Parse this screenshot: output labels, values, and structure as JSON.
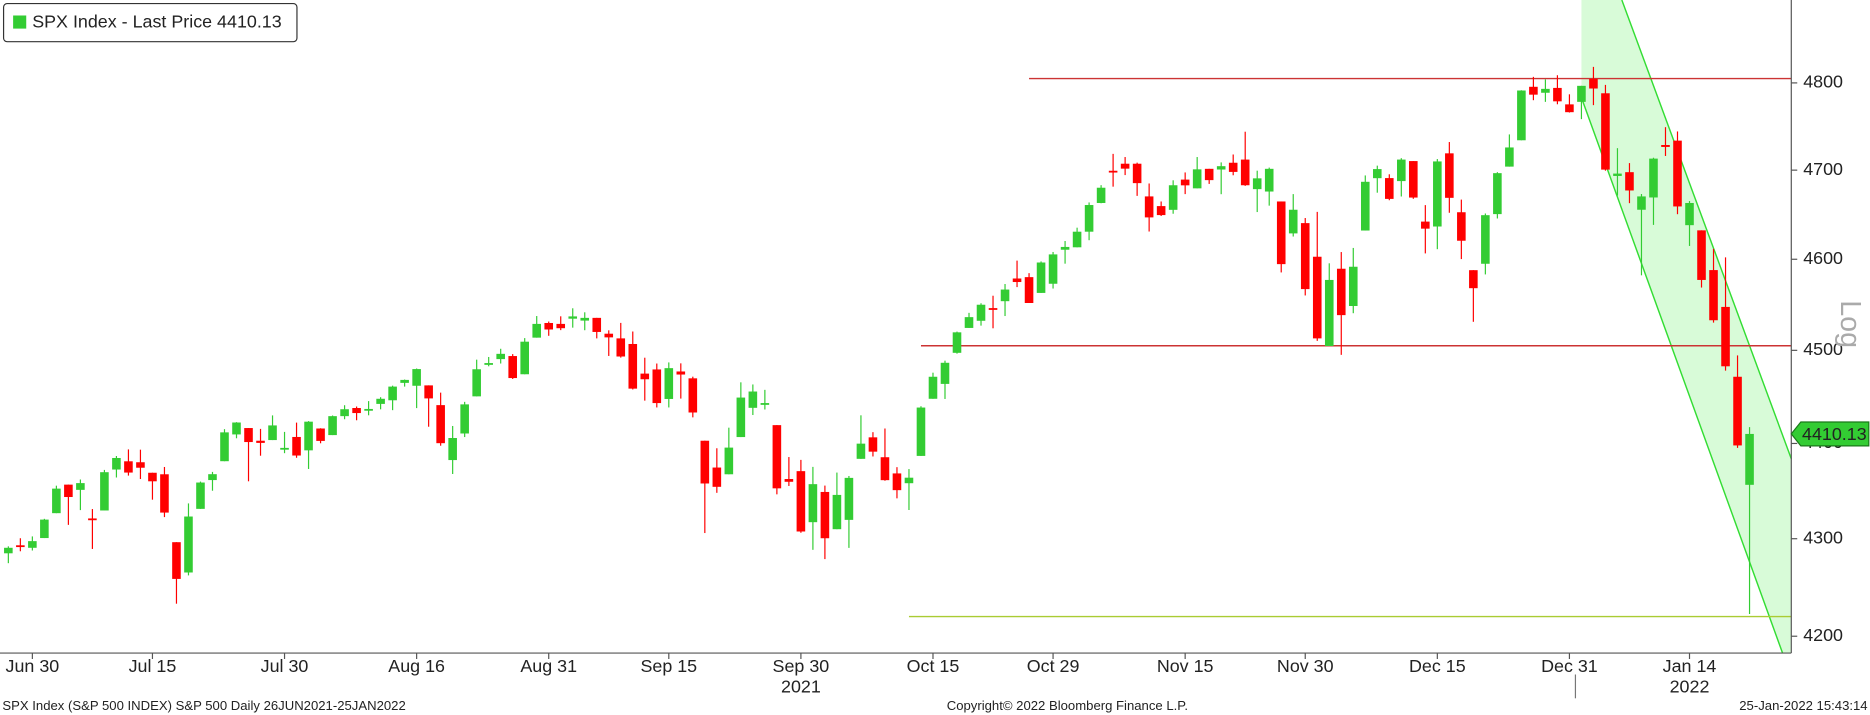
{
  "chart_data": {
    "type": "candlestick",
    "legend": "SPX Index - Last Price 4410.13",
    "last_price": 4410.13,
    "scale_label": "Log",
    "log_scale": true,
    "up_color": "#33cc33",
    "down_color": "#ff0000",
    "footer_left": "SPX Index (S&P 500 INDEX) S&P 500  Daily 26JUN2021-25JAN2022",
    "footer_center": "Copyright© 2022 Bloomberg Finance L.P.",
    "footer_right": "25-Jan-2022 15:43:14",
    "categories": [
      "2021-06-28",
      "2021-06-29",
      "2021-06-30",
      "2021-07-01",
      "2021-07-02",
      "2021-07-06",
      "2021-07-07",
      "2021-07-08",
      "2021-07-09",
      "2021-07-12",
      "2021-07-13",
      "2021-07-14",
      "2021-07-15",
      "2021-07-16",
      "2021-07-19",
      "2021-07-20",
      "2021-07-21",
      "2021-07-22",
      "2021-07-23",
      "2021-07-26",
      "2021-07-27",
      "2021-07-28",
      "2021-07-29",
      "2021-07-30",
      "2021-08-02",
      "2021-08-03",
      "2021-08-04",
      "2021-08-05",
      "2021-08-06",
      "2021-08-09",
      "2021-08-10",
      "2021-08-11",
      "2021-08-12",
      "2021-08-13",
      "2021-08-16",
      "2021-08-17",
      "2021-08-18",
      "2021-08-19",
      "2021-08-20",
      "2021-08-23",
      "2021-08-24",
      "2021-08-25",
      "2021-08-26",
      "2021-08-27",
      "2021-08-30",
      "2021-08-31",
      "2021-09-01",
      "2021-09-02",
      "2021-09-03",
      "2021-09-07",
      "2021-09-08",
      "2021-09-09",
      "2021-09-10",
      "2021-09-13",
      "2021-09-14",
      "2021-09-15",
      "2021-09-16",
      "2021-09-17",
      "2021-09-20",
      "2021-09-21",
      "2021-09-22",
      "2021-09-23",
      "2021-09-24",
      "2021-09-27",
      "2021-09-28",
      "2021-09-29",
      "2021-09-30",
      "2021-10-01",
      "2021-10-04",
      "2021-10-05",
      "2021-10-06",
      "2021-10-07",
      "2021-10-08",
      "2021-10-11",
      "2021-10-12",
      "2021-10-13",
      "2021-10-14",
      "2021-10-15",
      "2021-10-18",
      "2021-10-19",
      "2021-10-20",
      "2021-10-21",
      "2021-10-22",
      "2021-10-25",
      "2021-10-26",
      "2021-10-27",
      "2021-10-28",
      "2021-10-29",
      "2021-11-01",
      "2021-11-02",
      "2021-11-03",
      "2021-11-04",
      "2021-11-05",
      "2021-11-08",
      "2021-11-09",
      "2021-11-10",
      "2021-11-11",
      "2021-11-12",
      "2021-11-15",
      "2021-11-16",
      "2021-11-17",
      "2021-11-18",
      "2021-11-19",
      "2021-11-22",
      "2021-11-23",
      "2021-11-24",
      "2021-11-26",
      "2021-11-29",
      "2021-11-30",
      "2021-12-01",
      "2021-12-02",
      "2021-12-03",
      "2021-12-06",
      "2021-12-07",
      "2021-12-08",
      "2021-12-09",
      "2021-12-10",
      "2021-12-13",
      "2021-12-14",
      "2021-12-15",
      "2021-12-16",
      "2021-12-17",
      "2021-12-20",
      "2021-12-21",
      "2021-12-22",
      "2021-12-23",
      "2021-12-27",
      "2021-12-28",
      "2021-12-29",
      "2021-12-30",
      "2021-12-31",
      "2022-01-03",
      "2022-01-04",
      "2022-01-05",
      "2022-01-06",
      "2022-01-07",
      "2022-01-10",
      "2022-01-11",
      "2022-01-12",
      "2022-01-13",
      "2022-01-14",
      "2022-01-18",
      "2022-01-19",
      "2022-01-20",
      "2022-01-21",
      "2022-01-24"
    ],
    "open": [
      4284.9,
      4293.2,
      4290.6,
      4300.7,
      4326.6,
      4356.5,
      4351.0,
      4321.1,
      4329.4,
      4372.4,
      4381.1,
      4380.1,
      4369.0,
      4367.4,
      4296.4,
      4265.1,
      4331.1,
      4361.3,
      4381.2,
      4409.6,
      4416.4,
      4402.9,
      4403.6,
      4395.1,
      4406.9,
      4392.7,
      4415.9,
      4408.9,
      4429.1,
      4437.8,
      4435.8,
      4442.2,
      4446.1,
      4464.8,
      4461.7,
      4462.1,
      4440.9,
      4382.4,
      4410.6,
      4450.3,
      4484.4,
      4490.5,
      4493.8,
      4474.1,
      4513.8,
      4529.8,
      4528.8,
      4534.5,
      4532.4,
      4535.4,
      4518.1,
      4513.0,
      4506.9,
      4474.8,
      4479.3,
      4447.5,
      4477.1,
      4469.7,
      4402.9,
      4374.5,
      4367.4,
      4406.8,
      4438.0,
      4442.1,
      4419.5,
      4362.4,
      4370.7,
      4317.2,
      4348.8,
      4309.9,
      4319.6,
      4383.7,
      4406.5,
      4385.4,
      4368.3,
      4358.0,
      4386.8,
      4447.7,
      4463.7,
      4497.3,
      4524.4,
      4532.2,
      4546.1,
      4553.7,
      4578.7,
      4580.2,
      4562.8,
      4572.9,
      4610.6,
      4613.3,
      4630.7,
      4662.9,
      4699.3,
      4707.3,
      4707.3,
      4670.3,
      4659.4,
      4655.2,
      4689.3,
      4679.4,
      4701.5,
      4700.7,
      4708.4,
      4712.0,
      4678.5,
      4675.8,
      4664.6,
      4628.8,
      4640.3,
      4602.8,
      4504.7,
      4589.5,
      4548.4,
      4632.0,
      4690.9,
      4691.0,
      4687.6,
      4710.3,
      4642.0,
      4636.5,
      4719.1,
      4652.5,
      4587.9,
      4595.0,
      4650.4,
      4704.0,
      4734.0,
      4795.5,
      4788.6,
      4794.2,
      4775.2,
      4778.1,
      4804.5,
      4788.0,
      4693.4,
      4697.7,
      4655.3,
      4669.1,
      4728.6,
      4733.6,
      4638.0,
      4632.2,
      4588.0,
      4547.4,
      4471.4,
      4356.3
    ],
    "high": [
      4292.1,
      4300.5,
      4302.4,
      4320.7,
      4355.4,
      4356.5,
      4361.9,
      4330.9,
      4372.0,
      4386.7,
      4393.7,
      4393.4,
      4369.0,
      4375.1,
      4296.4,
      4336.8,
      4359.7,
      4369.9,
      4415.2,
      4422.7,
      4416.4,
      4415.5,
      4429.9,
      4412.3,
      4422.2,
      4423.8,
      4416.2,
      4429.8,
      4440.8,
      4439.4,
      4445.2,
      4449.4,
      4461.8,
      4468.4,
      4480.3,
      4462.1,
      4454.3,
      4418.6,
      4444.4,
      4489.9,
      4492.8,
      4501.7,
      4495.9,
      4513.3,
      4537.4,
      4531.4,
      4537.1,
      4545.9,
      4541.5,
      4535.4,
      4521.8,
      4529.9,
      4520.5,
      4492.0,
      4485.7,
      4486.9,
      4485.9,
      4471.5,
      4402.9,
      4394.9,
      4416.8,
      4465.4,
      4463.1,
      4457.3,
      4419.5,
      4385.6,
      4382.6,
      4375.2,
      4355.5,
      4369.2,
      4365.6,
      4430.0,
      4412.0,
      4415.9,
      4374.9,
      4372.9,
      4439.7,
      4475.8,
      4488.8,
      4520.4,
      4540.9,
      4551.4,
      4559.7,
      4572.6,
      4598.5,
      4584.6,
      4597.6,
      4608.1,
      4620.3,
      4635.2,
      4663.5,
      4683.0,
      4718.5,
      4714.9,
      4708.5,
      4684.9,
      4664.6,
      4688.5,
      4697.4,
      4714.9,
      4701.5,
      4708.8,
      4717.8,
      4743.8,
      4699.4,
      4702.9,
      4664.6,
      4672.9,
      4646.0,
      4652.9,
      4595.5,
      4608.0,
      4612.6,
      4694.0,
      4705.1,
      4695.3,
      4713.6,
      4710.3,
      4660.5,
      4712.6,
      4732.0,
      4666.7,
      4587.9,
      4651.1,
      4697.7,
      4740.7,
      4791.5,
      4807.0,
      4804.1,
      4808.9,
      4786.8,
      4796.6,
      4818.6,
      4797.7,
      4725.0,
      4708.0,
      4673.0,
      4714.1,
      4749.0,
      4744.1,
      4665.1,
      4632.2,
      4611.6,
      4602.1,
      4494.5,
      4417.4
    ],
    "low": [
      4274.7,
      4287.0,
      4287.8,
      4300.7,
      4326.6,
      4314.4,
      4329.8,
      4289.4,
      4329.4,
      4364.0,
      4366.0,
      4362.4,
      4340.7,
      4322.5,
      4233.1,
      4262.1,
      4331.1,
      4350.1,
      4381.2,
      4405.5,
      4360.0,
      4387.0,
      4403.6,
      4389.7,
      4384.8,
      4373.0,
      4400.2,
      4408.9,
      4425.8,
      4424.7,
      4430.0,
      4436.4,
      4435.5,
      4460.8,
      4437.7,
      4417.8,
      4397.6,
      4367.7,
      4406.8,
      4450.3,
      4482.7,
      4485.7,
      4469.0,
      4474.1,
      4513.8,
      4515.8,
      4522.0,
      4524.7,
      4521.9,
      4513.0,
      4493.9,
      4492.1,
      4457.7,
      4445.7,
      4438.4,
      4438.4,
      4447.9,
      4427.8,
      4305.9,
      4347.9,
      4367.4,
      4406.8,
      4430.3,
      4436.2,
      4346.3,
      4355.1,
      4306.2,
      4288.5,
      4278.9,
      4309.9,
      4290.5,
      4383.7,
      4386.2,
      4360.6,
      4342.1,
      4329.9,
      4386.8,
      4447.7,
      4447.5,
      4496.4,
      4524.4,
      4526.9,
      4524.0,
      4537.4,
      4569.2,
      4551.7,
      4562.8,
      4567.6,
      4595.1,
      4613.3,
      4621.2,
      4662.6,
      4681.3,
      4694.4,
      4670.9,
      4630.9,
      4648.3,
      4650.8,
      4672.9,
      4679.4,
      4684.4,
      4672.8,
      4694.2,
      4682.2,
      4652.7,
      4659.9,
      4585.4,
      4625.3,
      4560.0,
      4510.3,
      4504.7,
      4495.1,
      4540.5,
      4632.0,
      4674.5,
      4666.0,
      4670.2,
      4667.6,
      4606.5,
      4611.2,
      4651.9,
      4600.2,
      4531.1,
      4583.2,
      4645.5,
      4704.0,
      4734.0,
      4780.0,
      4778.1,
      4775.3,
      4765.8,
      4758.2,
      4774.3,
      4699.4,
      4671.3,
      4662.7,
      4582.2,
      4638.3,
      4716.1,
      4650.3,
      4614.8,
      4568.7,
      4530.2,
      4478.0,
      4395.3,
      4222.6
    ],
    "close": [
      4290.6,
      4291.8,
      4297.5,
      4319.9,
      4352.3,
      4343.5,
      4358.1,
      4320.8,
      4369.6,
      4384.6,
      4369.2,
      4374.3,
      4360.0,
      4327.2,
      4258.5,
      4323.1,
      4358.7,
      4367.5,
      4411.8,
      4422.3,
      4401.5,
      4400.6,
      4419.2,
      4395.3,
      4387.2,
      4423.2,
      4402.7,
      4429.1,
      4436.5,
      4432.4,
      4436.8,
      4447.7,
      4460.8,
      4468.0,
      4479.7,
      4448.1,
      4400.3,
      4405.8,
      4441.7,
      4479.5,
      4486.2,
      4496.2,
      4470.0,
      4509.4,
      4528.8,
      4522.7,
      4524.1,
      4537.0,
      4535.4,
      4520.0,
      4514.1,
      4493.3,
      4458.6,
      4468.7,
      4443.1,
      4480.7,
      4473.8,
      4433.0,
      4357.7,
      4354.2,
      4395.6,
      4449.0,
      4455.5,
      4443.1,
      4352.6,
      4359.5,
      4307.5,
      4357.0,
      4300.5,
      4345.7,
      4363.6,
      4399.8,
      4391.3,
      4361.2,
      4350.7,
      4363.8,
      4438.3,
      4471.4,
      4486.5,
      4519.6,
      4536.2,
      4549.8,
      4544.9,
      4566.5,
      4574.8,
      4551.7,
      4596.4,
      4605.4,
      4613.7,
      4630.7,
      4660.6,
      4680.1,
      4697.5,
      4701.7,
      4685.3,
      4646.7,
      4649.3,
      4682.9,
      4682.8,
      4700.9,
      4688.7,
      4704.5,
      4698.0,
      4682.9,
      4690.7,
      4701.5,
      4594.6,
      4655.3,
      4567.0,
      4513.0,
      4577.1,
      4538.4,
      4591.7,
      4686.8,
      4701.2,
      4667.5,
      4712.0,
      4669.0,
      4634.1,
      4709.9,
      4668.7,
      4620.6,
      4568.0,
      4649.2,
      4696.6,
      4725.8,
      4791.2,
      4786.4,
      4793.1,
      4778.7,
      4766.2,
      4796.6,
      4793.5,
      4700.6,
      4696.1,
      4677.0,
      4670.3,
      4713.1,
      4726.4,
      4659.0,
      4662.9,
      4577.1,
      4532.8,
      4482.7,
      4397.9,
      4410.13
    ],
    "ylim": [
      4183,
      4897
    ],
    "yticks": [
      4200,
      4300,
      4400,
      4500,
      4600,
      4700,
      4800
    ],
    "xticks": [
      {
        "value": "2021-06-30",
        "label": "Jun 30"
      },
      {
        "value": "2021-07-15",
        "label": "Jul 15"
      },
      {
        "value": "2021-07-30",
        "label": "Jul 30"
      },
      {
        "value": "2021-08-16",
        "label": "Aug 16"
      },
      {
        "value": "2021-08-31",
        "label": "Aug 31"
      },
      {
        "value": "2021-09-15",
        "label": "Sep 15"
      },
      {
        "value": "2021-09-30",
        "label": "Sep 30"
      },
      {
        "value": "2021-10-15",
        "label": "Oct 15"
      },
      {
        "value": "2021-10-29",
        "label": "Oct 29"
      },
      {
        "value": "2021-11-15",
        "label": "Nov 15"
      },
      {
        "value": "2021-11-30",
        "label": "Nov 30"
      },
      {
        "value": "2021-12-15",
        "label": "Dec 15"
      },
      {
        "value": "2021-12-31",
        "label": "Dec 31"
      },
      {
        "value": "2022-01-14",
        "label": "Jan 14"
      }
    ],
    "year_labels": [
      {
        "value": "2021-09-30",
        "label": "2021"
      },
      {
        "value": "2022-01-14",
        "label": "2022"
      }
    ],
    "levels": [
      {
        "value": 4805,
        "from": "2021-10-27",
        "color": "#cc3333"
      },
      {
        "value": 4505,
        "from": "2021-10-14",
        "color": "#cc3333"
      },
      {
        "value": 4220,
        "from": "2021-10-13",
        "color": "#aacc33"
      }
    ],
    "channel": {
      "color": "#33dd33",
      "fill": "#d8fbd8",
      "lines": [
        {
          "from": "2022-01-06",
          "from_value": 4911,
          "to": "2022-01-24",
          "to_value": 4505
        },
        {
          "from": "2022-01-03",
          "from_value": 4783,
          "to": "2022-01-24",
          "to_value": 4276
        }
      ]
    }
  }
}
